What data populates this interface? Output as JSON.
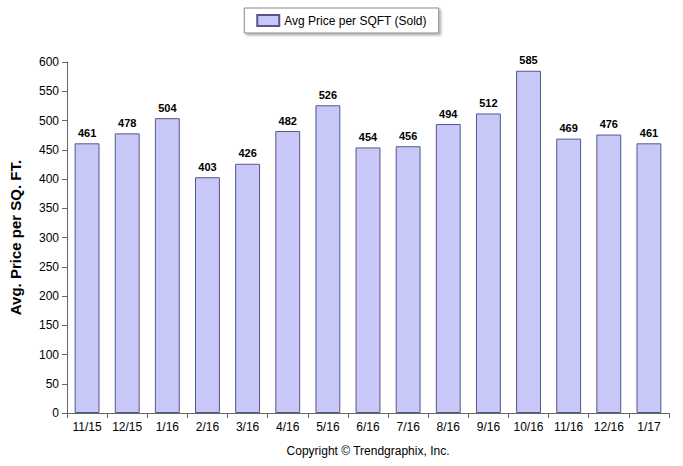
{
  "chart_data": {
    "type": "bar",
    "xlabel": "Copyright © Trendgraphix, Inc.",
    "ylabel": "Avg. Price per SQ. FT.",
    "categories": [
      "11/15",
      "12/15",
      "1/16",
      "2/16",
      "3/16",
      "4/16",
      "5/16",
      "6/16",
      "7/16",
      "8/16",
      "9/16",
      "10/16",
      "11/16",
      "12/16",
      "1/17"
    ],
    "series": [
      {
        "name": "Avg Price per SQFT (Sold)",
        "color": "#c8c8f8",
        "values": [
          461,
          478,
          504,
          403,
          426,
          482,
          526,
          454,
          456,
          494,
          512,
          585,
          469,
          476,
          461
        ]
      }
    ],
    "ylim": [
      0,
      600
    ],
    "yticks": [
      0,
      50,
      100,
      150,
      200,
      250,
      300,
      350,
      400,
      450,
      500,
      550,
      600
    ],
    "grid": false,
    "legend": "top",
    "data_labels": true
  }
}
